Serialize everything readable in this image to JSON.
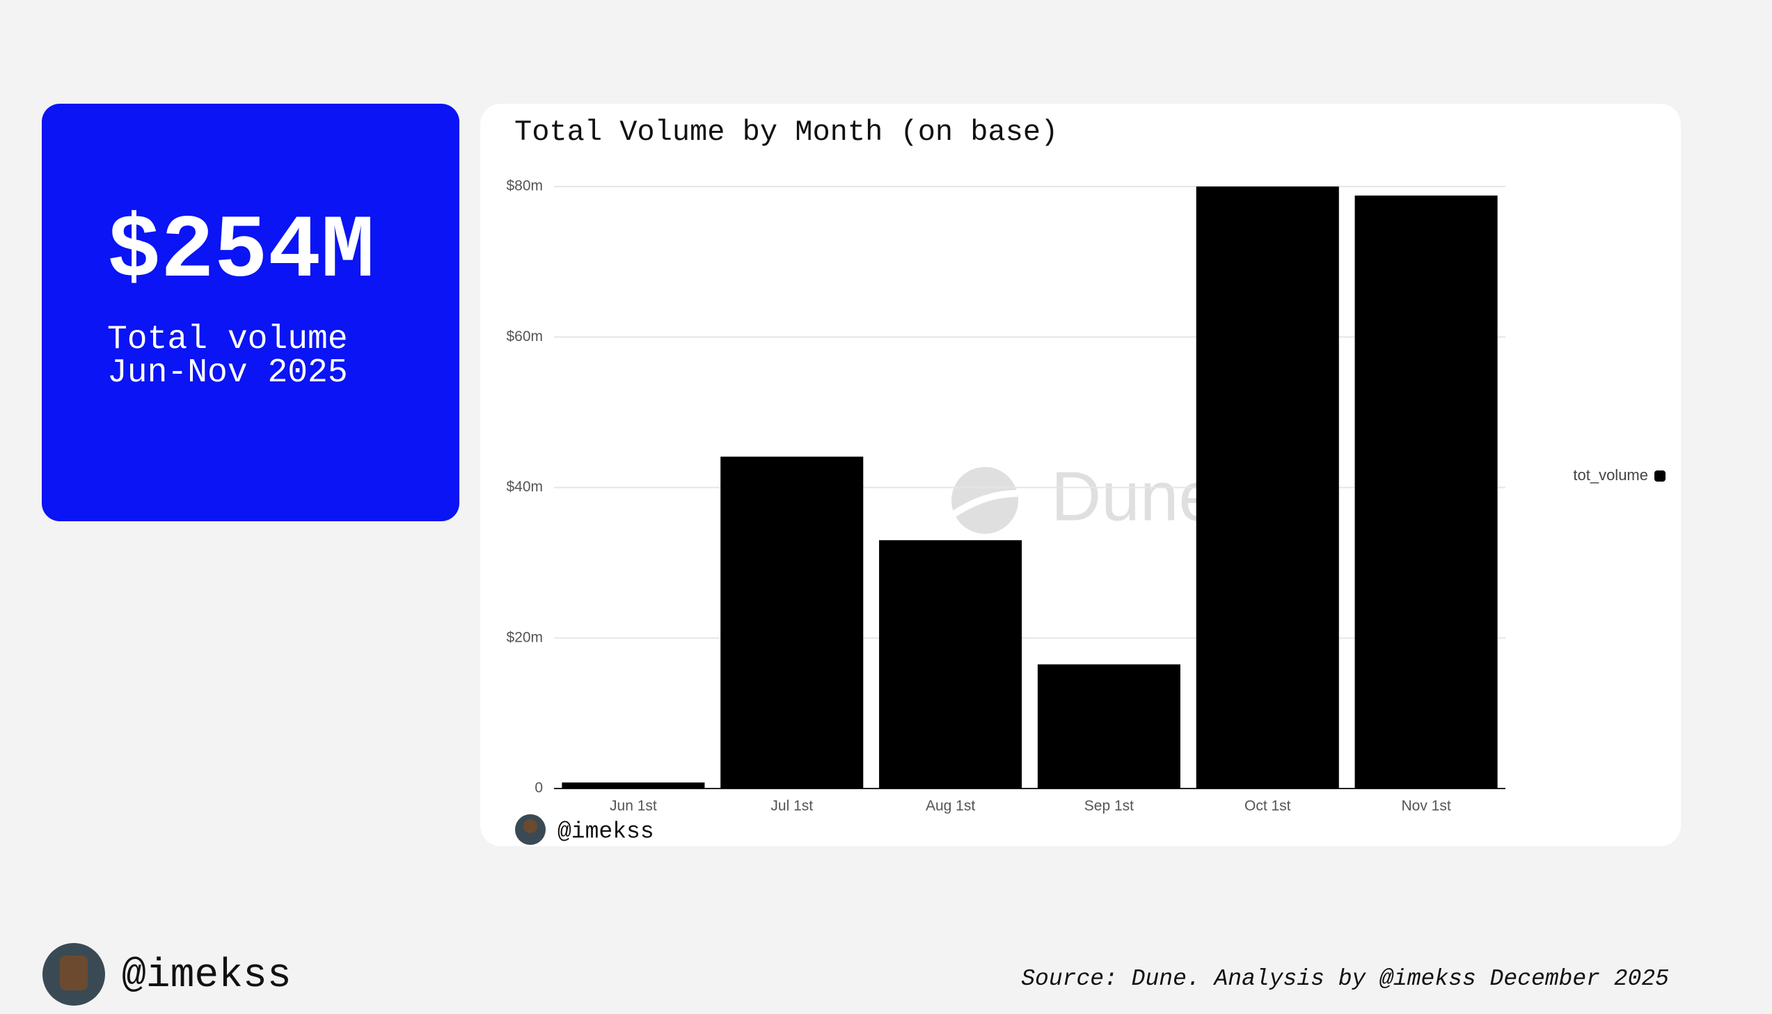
{
  "stat": {
    "value": "$254M",
    "label_lines": [
      "Total volume",
      "Jun-Nov 2025"
    ]
  },
  "chart_data": {
    "type": "bar",
    "title": "Total Volume by Month (on base)",
    "categories": [
      "Jun 1st",
      "Jul 1st",
      "Aug 1st",
      "Sep 1st",
      "Oct 1st",
      "Nov 1st"
    ],
    "series": [
      {
        "name": "tot_volume",
        "color": "#000000",
        "values": [
          0.8,
          44.1,
          33.0,
          16.5,
          80.0,
          78.8
        ]
      }
    ],
    "ylim": [
      0,
      80
    ],
    "yticks": [
      0,
      {
        "value": 20,
        "label": "$20m"
      },
      {
        "value": 40,
        "label": "$40m"
      },
      {
        "value": 60,
        "label": "$60m"
      },
      {
        "value": 80,
        "label": "$80m"
      }
    ],
    "grid": true,
    "legend": "right",
    "watermark": "Dune",
    "author": "@imekss"
  },
  "footer": {
    "handle": "@imekss",
    "source": "Source: Dune. Analysis by @imekss December 2025"
  }
}
